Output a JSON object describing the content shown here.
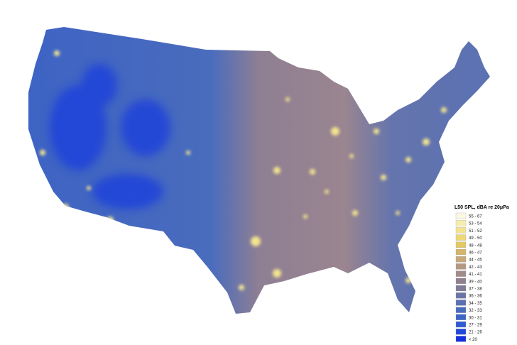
{
  "legend": {
    "title": "L50 SPL, dBA re 20μPa",
    "items": [
      {
        "label": "55 - 67",
        "color": "#fbf8e4"
      },
      {
        "label": "53 - 54",
        "color": "#f7eeae"
      },
      {
        "label": "51 - 52",
        "color": "#f3e48f"
      },
      {
        "label": "49 - 50",
        "color": "#ecd877"
      },
      {
        "label": "48 - 48",
        "color": "#e2c966"
      },
      {
        "label": "46 - 47",
        "color": "#d4b56e"
      },
      {
        "label": "44 - 45",
        "color": "#c6a97a"
      },
      {
        "label": "42 - 43",
        "color": "#b49884"
      },
      {
        "label": "41 - 41",
        "color": "#a38a8b"
      },
      {
        "label": "39 - 40",
        "color": "#928090"
      },
      {
        "label": "37 - 38",
        "color": "#7f7b98"
      },
      {
        "label": "36 - 36",
        "color": "#6b76a6"
      },
      {
        "label": "34 - 35",
        "color": "#5a71b3"
      },
      {
        "label": "32 - 33",
        "color": "#4a6cbd"
      },
      {
        "label": "30 - 31",
        "color": "#3c66c6"
      },
      {
        "label": "27 - 29",
        "color": "#2f5ad2"
      },
      {
        "label": "21 - 26",
        "color": "#2148dc"
      },
      {
        "label": "< 20",
        "color": "#1230e0"
      }
    ]
  }
}
